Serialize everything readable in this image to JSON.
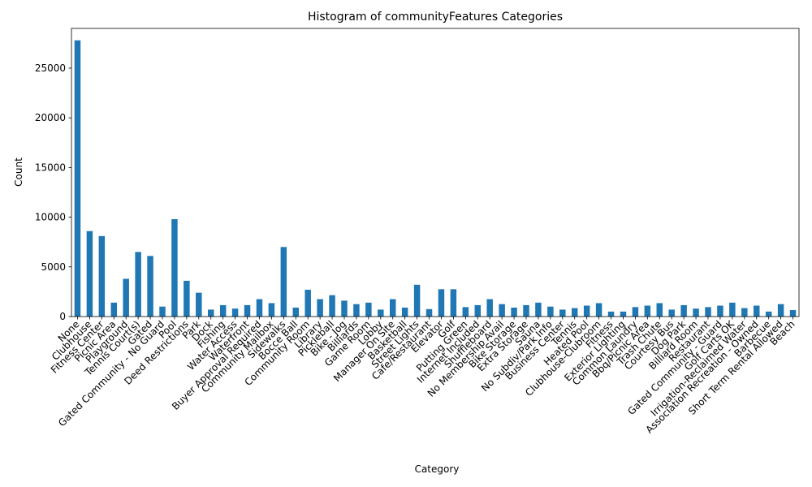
{
  "chart_data": {
    "type": "bar",
    "title": "Histogram of communityFeatures Categories",
    "xlabel": "Category",
    "ylabel": "Count",
    "ylim": [
      0,
      29000
    ],
    "yticks": [
      0,
      5000,
      10000,
      15000,
      20000,
      25000
    ],
    "bar_color": "#1f77b4",
    "grid": false,
    "categories": [
      "None",
      "Clubhouse",
      "Fitness Center",
      "Picnic Area",
      "Playground",
      "Tennis Court(s)",
      "Gated",
      "Gated Community - No Guard",
      "Pool",
      "Deed Restrictions",
      "Park",
      "Dock",
      "Fishing",
      "Water Access",
      "Waterfront",
      "Buyer Approval Required",
      "Community Mailbox",
      "Sidewalks",
      "Bocce Ball",
      "Community Room",
      "Library",
      "Pickleball",
      "Bike - Jog",
      "Billiards",
      "Game Room",
      "Lobby",
      "Manager On Site",
      "Basketball",
      "Street Lights",
      "Cafe/Restaurant",
      "Elevator",
      "Golf",
      "Putting Green",
      "Internet Included",
      "Shuffleboard",
      "No Membership Avail",
      "Bike Storage",
      "Extra Storage",
      "Sauna",
      "No Subdiv/Park Info",
      "Business Center",
      "Tennis",
      "Heated Pool",
      "Clubhouse-Clubroom",
      "Fitness",
      "Exterior Lighting",
      "Common Laundry",
      "Bbq/Picnic Area",
      "Trash Chute",
      "Courtesy Bus",
      "Dog Park",
      "Billiard Room",
      "Restaurant",
      "Gated Community - Guard",
      "Golf Carts OK",
      "Irrigation-Reclaimed Water",
      "Association Recreation - Owned",
      "Barbecue",
      "Short Term Rental Allowed",
      "Beach"
    ],
    "values": [
      27800,
      8600,
      8100,
      1400,
      3800,
      6500,
      6100,
      1000,
      9800,
      3600,
      2400,
      700,
      1150,
      800,
      1150,
      1750,
      1350,
      7000,
      900,
      2700,
      1750,
      2150,
      1600,
      1250,
      1400,
      700,
      1750,
      900,
      3200,
      750,
      2750,
      2750,
      950,
      1150,
      1750,
      1250,
      900,
      1150,
      1400,
      1000,
      700,
      850,
      1100,
      1350,
      500,
      500,
      950,
      1100,
      1350,
      700,
      1150,
      800,
      950,
      1100,
      1400,
      850,
      1100,
      500,
      1250,
      650
    ]
  }
}
